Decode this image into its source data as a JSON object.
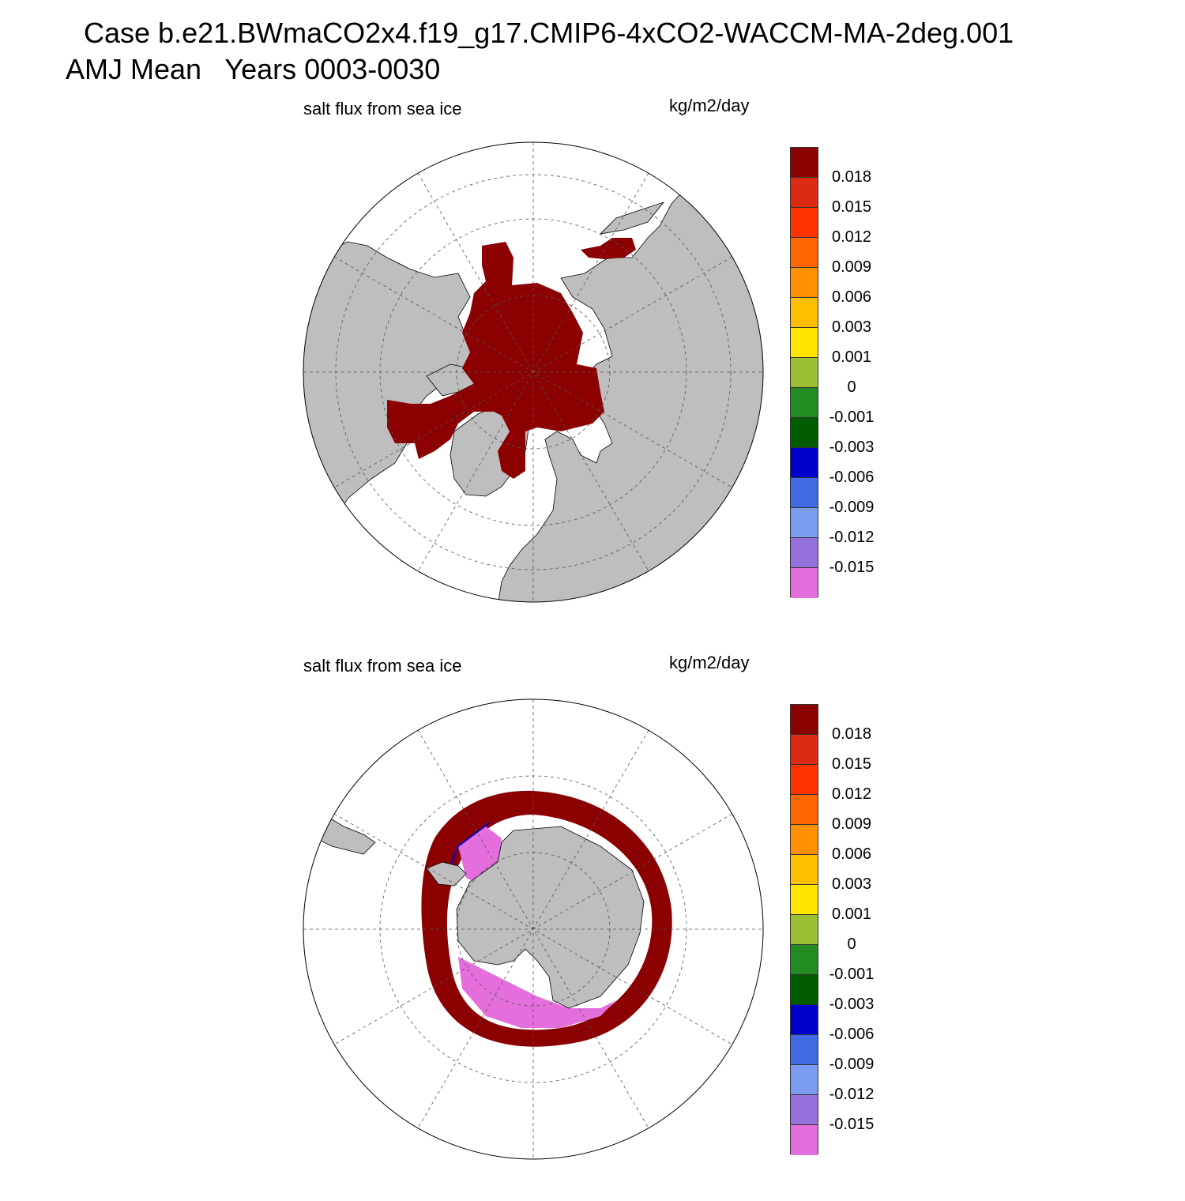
{
  "title": {
    "line1": "Case b.e21.BWmaCO2x4.f19_g17.CMIP6-4xCO2-WACCM-MA-2deg.001",
    "line2": "AMJ Mean   Years 0003-0030"
  },
  "panels": [
    {
      "left_label": "salt flux from sea ice",
      "right_label": "kg/m2/day",
      "hemisphere": "north"
    },
    {
      "left_label": "salt flux from sea ice",
      "right_label": "kg/m2/day",
      "hemisphere": "south"
    }
  ],
  "colorbar": {
    "colors": [
      "#8b0000",
      "#dd2a12",
      "#ff3300",
      "#ff6600",
      "#ff9100",
      "#ffbf00",
      "#ffe500",
      "#9bbf33",
      "#228b22",
      "#005c00",
      "#0000cd",
      "#4169e1",
      "#7b9cf0",
      "#9370db",
      "#e46fdc"
    ],
    "labels": [
      "0.018",
      "0.015",
      "0.012",
      "0.009",
      "0.006",
      "0.003",
      "0.001",
      "0",
      "-0.001",
      "-0.003",
      "-0.006",
      "-0.009",
      "-0.012",
      "-0.015"
    ]
  },
  "colors": {
    "land": "#bebebe",
    "ocean": "#ffffff",
    "grid": "#555555"
  }
}
